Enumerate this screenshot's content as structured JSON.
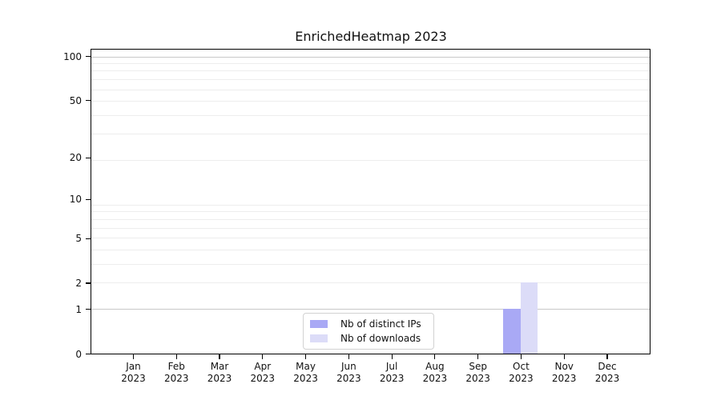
{
  "chart_data": {
    "type": "bar",
    "title": "EnrichedHeatmap 2023",
    "x_categories": [
      "Jan",
      "Feb",
      "Mar",
      "Apr",
      "May",
      "Jun",
      "Jul",
      "Aug",
      "Sep",
      "Oct",
      "Nov",
      "Dec"
    ],
    "x_year_label": "2023",
    "y_ticks": [
      0,
      1,
      2,
      5,
      10,
      20,
      50,
      100
    ],
    "y_scale": "log1p",
    "ylim": [
      0,
      113
    ],
    "grid": {
      "major_values": [
        1,
        99
      ],
      "minor_values": [
        2,
        3,
        4,
        5,
        6,
        7,
        8,
        9,
        19,
        29,
        39,
        49,
        59,
        69,
        79,
        89
      ],
      "major_color": "#c9c9c9",
      "minor_color": "#ededed"
    },
    "series": [
      {
        "name": "Nb of distinct IPs",
        "color": "#a9a9f5",
        "values": [
          0,
          0,
          0,
          0,
          0,
          0,
          0,
          0,
          0,
          1,
          0,
          0
        ]
      },
      {
        "name": "Nb of downloads",
        "color": "#dcdcf8",
        "values": [
          0,
          0,
          0,
          0,
          0,
          0,
          0,
          0,
          0,
          2,
          0,
          0
        ]
      }
    ],
    "legend": {
      "position": "lower center inside"
    }
  }
}
